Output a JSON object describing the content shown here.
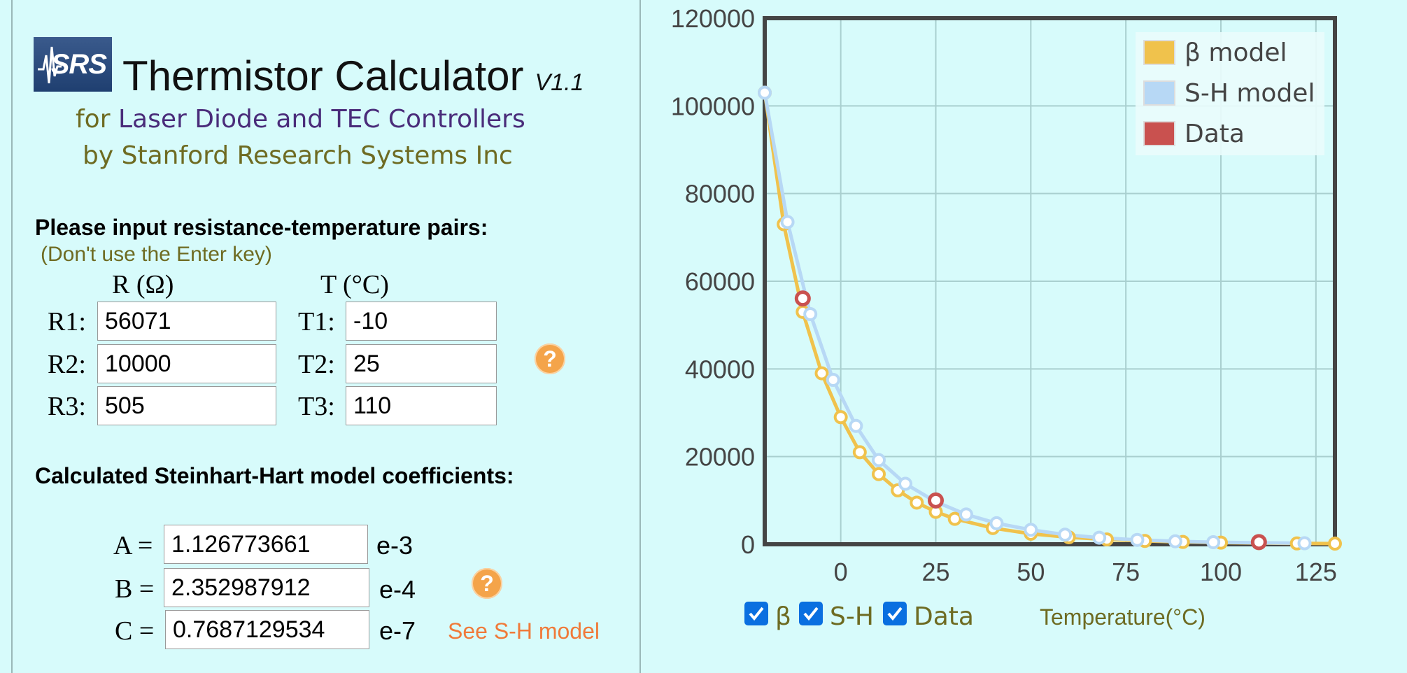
{
  "header": {
    "logo_text": "SRS",
    "title": "Thermistor Calculator",
    "version": "V1.1",
    "subtitle_for": "for ",
    "subtitle_accent": "Laser Diode and TEC Controllers",
    "subtitle_by": "by Stanford Research Systems Inc"
  },
  "inputs": {
    "prompt": "Please input resistance-temperature pairs:",
    "hint": "(Don't use the Enter key)",
    "r_header": "R (Ω)",
    "t_header": "T (°C)",
    "rows": [
      {
        "r_label": "R1:",
        "r_value": "56071",
        "t_label": "T1:",
        "t_value": "-10"
      },
      {
        "r_label": "R2:",
        "r_value": "10000",
        "t_label": "T2:",
        "t_value": "25"
      },
      {
        "r_label": "R3:",
        "r_value": "505",
        "t_label": "T3:",
        "t_value": "110"
      }
    ],
    "help_glyph": "?"
  },
  "coefficients": {
    "title": "Calculated Steinhart-Hart model coefficients:",
    "rows": [
      {
        "label": "A =",
        "value": "1.126773661",
        "exp": "e-3"
      },
      {
        "label": "B =",
        "value": "2.352987912",
        "exp": "e-4"
      },
      {
        "label": "C =",
        "value": "0.7687129534",
        "exp": "e-7"
      }
    ],
    "help_glyph": "?",
    "link": "See S-H model"
  },
  "controls": {
    "beta_label": "β",
    "sh_label": "S-H",
    "data_label": "Data"
  },
  "colors": {
    "background": "#d7fbfb",
    "beta": "#f0c24c",
    "sh": "#b7d8f5",
    "data": "#c9514f",
    "help": "#f4a44a",
    "link": "#f07a3a",
    "checkbox": "#0a6fe0"
  },
  "chart_data": {
    "type": "line",
    "title": "",
    "xlabel": "Temperature(°C)",
    "ylabel": "",
    "xlim": [
      -20,
      130
    ],
    "ylim": [
      0,
      120000
    ],
    "x_ticks": [
      0,
      25,
      50,
      75,
      100,
      125
    ],
    "y_ticks": [
      0,
      20000,
      40000,
      60000,
      80000,
      100000,
      120000
    ],
    "grid": true,
    "legend_position": "top-right",
    "series": [
      {
        "name": "β model",
        "x": [
          -20,
          -15,
          -10,
          -5,
          0,
          5,
          10,
          15,
          20,
          25,
          30,
          40,
          50,
          60,
          70,
          80,
          90,
          100,
          110,
          120,
          130
        ],
        "values": [
          103000,
          73000,
          53000,
          39000,
          29000,
          21000,
          16000,
          12300,
          9500,
          7400,
          5800,
          3700,
          2400,
          1600,
          1100,
          760,
          530,
          380,
          280,
          200,
          150
        ]
      },
      {
        "name": "S-H model",
        "x": [
          -20,
          -14,
          -8,
          -2,
          4,
          10,
          17,
          25,
          33,
          41,
          50,
          59,
          68,
          78,
          88,
          98,
          110,
          122
        ],
        "values": [
          103000,
          73500,
          52500,
          37500,
          27000,
          19200,
          13800,
          9700,
          6800,
          4800,
          3300,
          2200,
          1500,
          1000,
          680,
          480,
          330,
          230
        ]
      },
      {
        "name": "Data",
        "x": [
          -10,
          25,
          110
        ],
        "values": [
          56071,
          10000,
          505
        ]
      }
    ]
  }
}
